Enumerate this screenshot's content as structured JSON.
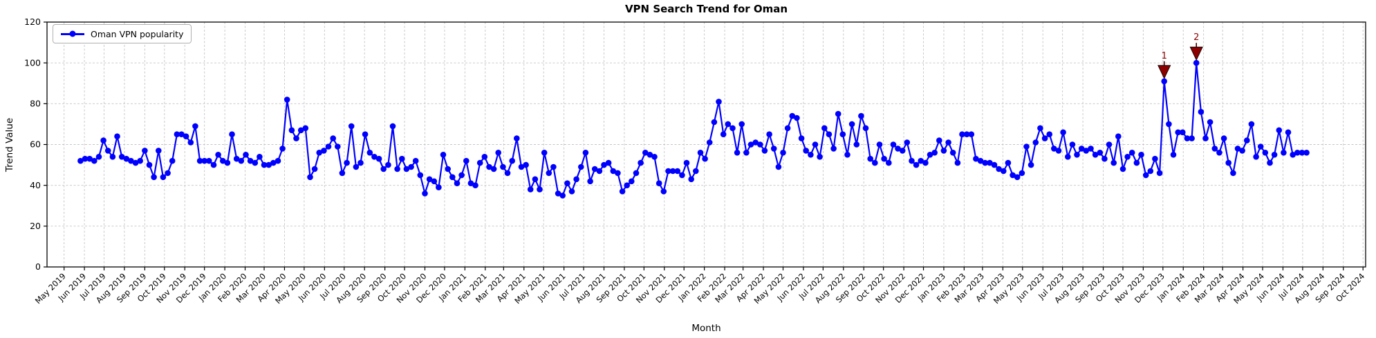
{
  "figure": {
    "title": "VPN Search Trend for Oman",
    "xlabel": "Month",
    "ylabel": "Trend Value"
  },
  "legend": {
    "label": "Oman VPN popularity"
  },
  "colors": {
    "line": "#0000ff",
    "marker": "#0000ff",
    "annotation": "#8b0000",
    "grid": "#c4c4c4",
    "spine": "#000000",
    "background": "#ffffff"
  },
  "chart_data": {
    "type": "line",
    "title": "VPN Search Trend for Oman",
    "xlabel": "Month",
    "ylabel": "Trend Value",
    "ylim": [
      0,
      120
    ],
    "yticks": [
      0,
      20,
      40,
      60,
      80,
      100,
      120
    ],
    "grid": true,
    "legend_position": "upper left",
    "x_start_date": "2019-05-26",
    "x_interval_days": 7,
    "x_tick_labels": [
      "May 2019",
      "Jun 2019",
      "Jul 2019",
      "Aug 2019",
      "Sep 2019",
      "Oct 2019",
      "Nov 2019",
      "Dec 2019",
      "Jan 2020",
      "Feb 2020",
      "Mar 2020",
      "Apr 2020",
      "May 2020",
      "Jun 2020",
      "Jul 2020",
      "Aug 2020",
      "Sep 2020",
      "Oct 2020",
      "Nov 2020",
      "Dec 2020",
      "Jan 2021",
      "Feb 2021",
      "Mar 2021",
      "Apr 2021",
      "May 2021",
      "Jun 2021",
      "Jul 2021",
      "Aug 2021",
      "Sep 2021",
      "Oct 2021",
      "Nov 2021",
      "Dec 2021",
      "Jan 2022",
      "Feb 2022",
      "Mar 2022",
      "Apr 2022",
      "May 2022",
      "Jun 2022",
      "Jul 2022",
      "Aug 2022",
      "Sep 2022",
      "Oct 2022",
      "Nov 2022",
      "Dec 2022",
      "Jan 2023",
      "Feb 2023",
      "Mar 2023",
      "Apr 2023",
      "May 2023",
      "Jun 2023",
      "Jul 2023",
      "Aug 2023",
      "Sep 2023",
      "Oct 2023",
      "Nov 2023",
      "Dec 2023",
      "Jan 2024",
      "Feb 2024",
      "Mar 2024",
      "Apr 2024",
      "May 2024",
      "Jun 2024",
      "Jul 2024",
      "Aug 2024",
      "Sep 2024",
      "Oct 2024"
    ],
    "series": [
      {
        "name": "Oman VPN popularity",
        "color": "#0000ff",
        "values": [
          52,
          53,
          53,
          52,
          54,
          62,
          57,
          54,
          64,
          54,
          53,
          52,
          51,
          52,
          57,
          50,
          44,
          57,
          44,
          46,
          52,
          65,
          65,
          64,
          61,
          69,
          52,
          52,
          52,
          50,
          55,
          52,
          51,
          65,
          53,
          52,
          55,
          52,
          51,
          54,
          50,
          50,
          51,
          52,
          58,
          82,
          67,
          63,
          67,
          68,
          44,
          48,
          56,
          57,
          59,
          63,
          59,
          46,
          51,
          69,
          49,
          51,
          65,
          56,
          54,
          53,
          48,
          50,
          69,
          48,
          53,
          48,
          49,
          52,
          45,
          36,
          43,
          42,
          39,
          55,
          48,
          44,
          41,
          45,
          52,
          41,
          40,
          51,
          54,
          49,
          48,
          56,
          49,
          46,
          52,
          63,
          49,
          50,
          38,
          43,
          38,
          56,
          46,
          49,
          36,
          35,
          41,
          37,
          43,
          49,
          56,
          42,
          48,
          47,
          50,
          51,
          47,
          46,
          37,
          40,
          42,
          46,
          51,
          56,
          55,
          54,
          41,
          37,
          47,
          47,
          47,
          45,
          51,
          43,
          47,
          56,
          53,
          61,
          71,
          81,
          65,
          70,
          68,
          56,
          70,
          56,
          60,
          61,
          60,
          57,
          65,
          58,
          49,
          56,
          68,
          74,
          73,
          63,
          57,
          55,
          60,
          54,
          68,
          65,
          58,
          75,
          65,
          55,
          70,
          60,
          74,
          68,
          53,
          51,
          60,
          53,
          51,
          60,
          58,
          57,
          61,
          52,
          50,
          52,
          51,
          55,
          56,
          62,
          57,
          61,
          56,
          51,
          65,
          65,
          65,
          53,
          52,
          51,
          51,
          50,
          48,
          47,
          51,
          45,
          44,
          46,
          59,
          50,
          61,
          68,
          63,
          65,
          58,
          57,
          66,
          54,
          60,
          55,
          58,
          57,
          58,
          55,
          56,
          53,
          60,
          51,
          64,
          48,
          54,
          56,
          51,
          55,
          45,
          47,
          53,
          46,
          91,
          70,
          55,
          66,
          66,
          63,
          63,
          100,
          76,
          63,
          71,
          58,
          56,
          63,
          51,
          46,
          58,
          57,
          62,
          70,
          54,
          59,
          56,
          51,
          55,
          67,
          56,
          66,
          55,
          56,
          56,
          56
        ]
      }
    ],
    "annotations": [
      {
        "label": "1",
        "index": 236,
        "value": 91
      },
      {
        "label": "2",
        "index": 243,
        "value": 100
      }
    ]
  }
}
